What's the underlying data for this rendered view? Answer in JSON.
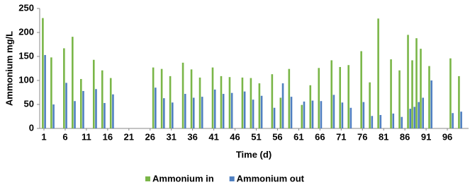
{
  "chart_data": {
    "type": "bar",
    "x_label": "Time (d)",
    "y_label": "Ammonium mg/L",
    "x": [
      1,
      3,
      6,
      8,
      10,
      13,
      15,
      17,
      27,
      29,
      31,
      34,
      36,
      38,
      41,
      43,
      45,
      48,
      50,
      52,
      55,
      57,
      59,
      62,
      64,
      66,
      69,
      71,
      73,
      76,
      78,
      80,
      83,
      85,
      87,
      88,
      89,
      90,
      92,
      97,
      99
    ],
    "series": [
      {
        "name": "Ammonium in",
        "color": "#7ab648",
        "values": [
          230,
          148,
          167,
          191,
          103,
          143,
          121,
          105,
          127,
          124,
          109,
          137,
          123,
          106,
          127,
          109,
          107,
          106,
          105,
          94,
          113,
          64,
          124,
          49,
          90,
          126,
          142,
          128,
          132,
          161,
          96,
          229,
          144,
          121,
          195,
          142,
          188,
          166,
          130,
          146,
          109
        ]
      },
      {
        "name": "Ammonium out",
        "color": "#4f7fc0",
        "values": [
          153,
          50,
          95,
          57,
          78,
          82,
          53,
          71,
          85,
          63,
          54,
          72,
          64,
          66,
          81,
          72,
          74,
          77,
          60,
          68,
          43,
          94,
          66,
          56,
          58,
          57,
          70,
          54,
          43,
          55,
          26,
          28,
          31,
          24,
          41,
          45,
          55,
          64,
          100,
          32,
          35
        ]
      }
    ],
    "xlim": [
      0,
      101
    ],
    "xticks": [
      1,
      6,
      11,
      16,
      21,
      26,
      31,
      36,
      41,
      46,
      51,
      56,
      61,
      66,
      71,
      76,
      81,
      86,
      91,
      96
    ],
    "ylim": [
      0,
      250
    ],
    "yticks": [
      0,
      50,
      100,
      150,
      200,
      250
    ],
    "legend": "bottom"
  }
}
